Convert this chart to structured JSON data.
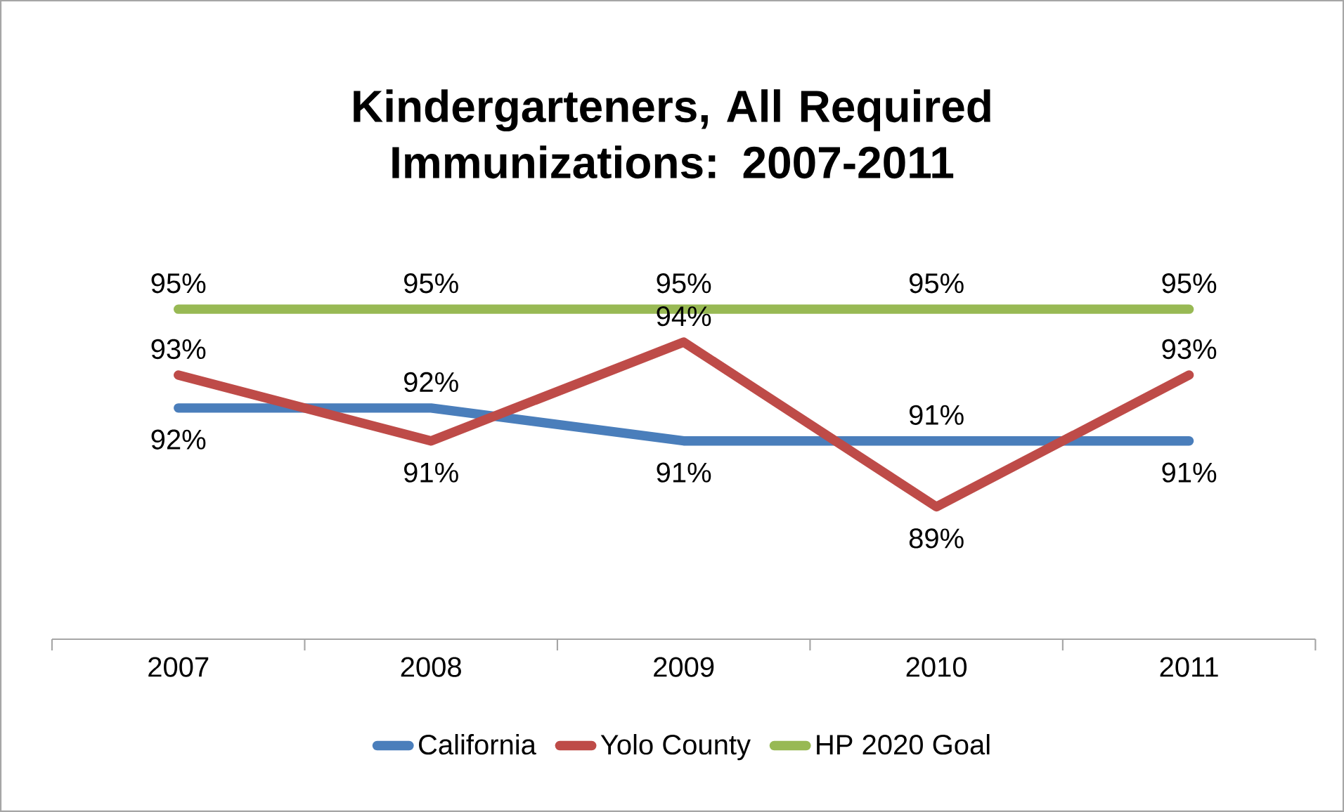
{
  "chart_data": {
    "type": "line",
    "title": "Kindergarteners, All Required Immunizations: 2007-2011",
    "categories": [
      "2007",
      "2008",
      "2009",
      "2010",
      "2011"
    ],
    "series": [
      {
        "name": "California",
        "color": "#4a7ebb",
        "values": [
          92,
          92,
          91,
          91,
          91
        ],
        "value_labels": [
          "92%",
          "92%",
          "91%",
          "91%",
          "91%"
        ]
      },
      {
        "name": "Yolo County",
        "color": "#be4b48",
        "values": [
          93,
          91,
          94,
          89,
          93
        ],
        "value_labels": [
          "93%",
          "91%",
          "94%",
          "89%",
          "93%"
        ]
      },
      {
        "name": "HP 2020 Goal",
        "color": "#98b954",
        "values": [
          95,
          95,
          95,
          95,
          95
        ],
        "value_labels": [
          "95%",
          "95%",
          "95%",
          "95%",
          "95%"
        ]
      }
    ],
    "legend": "bottom",
    "marker": "none",
    "line_style": "solid"
  }
}
